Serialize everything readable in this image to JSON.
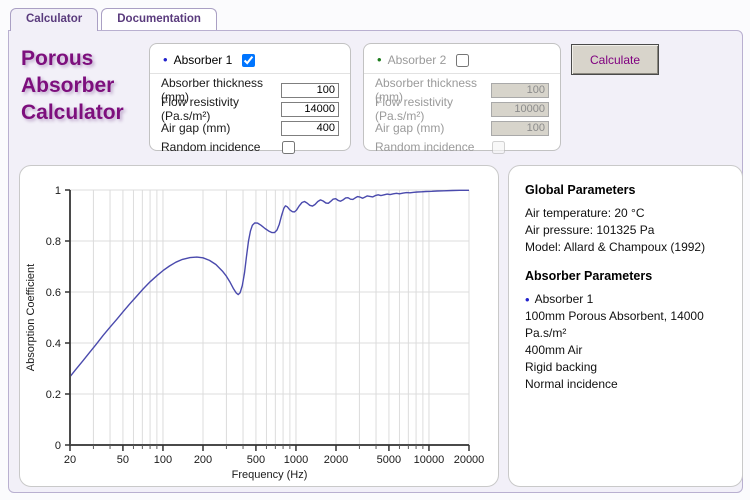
{
  "tabs": [
    {
      "label": "Calculator",
      "active": true
    },
    {
      "label": "Documentation",
      "active": false
    }
  ],
  "title": {
    "lines": [
      "Porous",
      "Absorber",
      "Calculator"
    ],
    "color": "#7d0f7d"
  },
  "calculate_button": {
    "label": "Calculate",
    "text_color": "#800080"
  },
  "colors": {
    "accent_purple": "#7d0f7d",
    "tab_text": "#5a3b7d",
    "container_bg": "#f2f0f8",
    "absorber1_bullet": "#2222cc",
    "absorber2_bullet": "#1e7d1e",
    "curve": "#4a4aad",
    "disabled_input_bg": "#d7d4cb"
  },
  "panels": {
    "absorber1": {
      "name": "Absorber 1",
      "enabled_checkbox_checked": true,
      "fields": [
        {
          "label": "Absorber thickness (mm)",
          "value": "100"
        },
        {
          "label": "Flow resistivity (Pa.s/m²)",
          "value": "14000"
        },
        {
          "label": "Air gap (mm)",
          "value": "400"
        }
      ],
      "random_incidence_label": "Random incidence",
      "random_incidence_checked": false
    },
    "absorber2": {
      "name": "Absorber 2",
      "enabled_checkbox_checked": false,
      "fields": [
        {
          "label": "Absorber thickness (mm)",
          "value": "100"
        },
        {
          "label": "Flow resistivity (Pa.s/m²)",
          "value": "10000"
        },
        {
          "label": "Air gap (mm)",
          "value": "100"
        }
      ],
      "random_incidence_label": "Random incidence",
      "random_incidence_checked": false
    }
  },
  "info_panel": {
    "global_heading": "Global Parameters",
    "global_lines": [
      "Air temperature: 20 °C",
      "Air pressure: 101325 Pa",
      "Model: Allard & Champoux (1992)"
    ],
    "absorber_heading": "Absorber Parameters",
    "absorber_name": "Absorber 1",
    "absorber_lines": [
      "100mm Porous Absorbent, 14000 Pa.s/m²",
      "400mm Air",
      "Rigid backing",
      "Normal incidence"
    ]
  },
  "chart_data": {
    "type": "line",
    "title": "",
    "xlabel": "Frequency (Hz)",
    "ylabel": "Absorption Coefficient",
    "x_scale": "log",
    "xlim": [
      20,
      20000
    ],
    "ylim": [
      0,
      1
    ],
    "grid": true,
    "legend": "none",
    "line_color": "#4a4aad",
    "x_major_ticks": [
      20,
      50,
      100,
      200,
      500,
      1000,
      2000,
      5000,
      10000,
      20000
    ],
    "x_minor_gridlines": [
      20,
      30,
      40,
      50,
      60,
      70,
      80,
      90,
      100,
      200,
      300,
      400,
      500,
      600,
      700,
      800,
      900,
      1000,
      2000,
      3000,
      4000,
      5000,
      6000,
      7000,
      8000,
      9000,
      10000,
      20000
    ],
    "y_ticks": [
      0,
      0.2,
      0.4,
      0.6,
      0.8,
      1
    ],
    "series": [
      {
        "name": "Absorber 1",
        "points": [
          [
            20,
            0.268
          ],
          [
            22,
            0.295
          ],
          [
            25,
            0.33
          ],
          [
            28,
            0.362
          ],
          [
            31.5,
            0.395
          ],
          [
            35.5,
            0.43
          ],
          [
            40,
            0.462
          ],
          [
            45,
            0.493
          ],
          [
            50,
            0.522
          ],
          [
            56,
            0.552
          ],
          [
            63,
            0.582
          ],
          [
            71,
            0.612
          ],
          [
            80,
            0.64
          ],
          [
            90,
            0.664
          ],
          [
            100,
            0.684
          ],
          [
            112,
            0.702
          ],
          [
            125,
            0.717
          ],
          [
            140,
            0.728
          ],
          [
            160,
            0.735
          ],
          [
            180,
            0.737
          ],
          [
            200,
            0.734
          ],
          [
            224,
            0.724
          ],
          [
            250,
            0.708
          ],
          [
            280,
            0.682
          ],
          [
            300,
            0.662
          ],
          [
            320,
            0.638
          ],
          [
            340,
            0.612
          ],
          [
            355,
            0.597
          ],
          [
            368,
            0.59
          ],
          [
            380,
            0.597
          ],
          [
            395,
            0.625
          ],
          [
            410,
            0.675
          ],
          [
            425,
            0.74
          ],
          [
            440,
            0.8
          ],
          [
            455,
            0.84
          ],
          [
            470,
            0.862
          ],
          [
            490,
            0.871
          ],
          [
            515,
            0.87
          ],
          [
            545,
            0.862
          ],
          [
            585,
            0.849
          ],
          [
            625,
            0.839
          ],
          [
            660,
            0.833
          ],
          [
            690,
            0.833
          ],
          [
            720,
            0.843
          ],
          [
            750,
            0.866
          ],
          [
            780,
            0.9
          ],
          [
            810,
            0.928
          ],
          [
            835,
            0.938
          ],
          [
            860,
            0.934
          ],
          [
            900,
            0.922
          ],
          [
            940,
            0.915
          ],
          [
            975,
            0.914
          ],
          [
            1010,
            0.921
          ],
          [
            1060,
            0.938
          ],
          [
            1110,
            0.951
          ],
          [
            1160,
            0.955
          ],
          [
            1210,
            0.949
          ],
          [
            1270,
            0.94
          ],
          [
            1330,
            0.937
          ],
          [
            1390,
            0.943
          ],
          [
            1460,
            0.955
          ],
          [
            1530,
            0.961
          ],
          [
            1600,
            0.957
          ],
          [
            1680,
            0.949
          ],
          [
            1750,
            0.948
          ],
          [
            1830,
            0.956
          ],
          [
            1900,
            0.964
          ],
          [
            1990,
            0.966
          ],
          [
            2080,
            0.959
          ],
          [
            2160,
            0.956
          ],
          [
            2270,
            0.962
          ],
          [
            2360,
            0.969
          ],
          [
            2460,
            0.97
          ],
          [
            2570,
            0.964
          ],
          [
            2680,
            0.963
          ],
          [
            2790,
            0.969
          ],
          [
            2900,
            0.974
          ],
          [
            3030,
            0.972
          ],
          [
            3170,
            0.968
          ],
          [
            3300,
            0.972
          ],
          [
            3440,
            0.977
          ],
          [
            3600,
            0.975
          ],
          [
            3780,
            0.973
          ],
          [
            3950,
            0.978
          ],
          [
            4150,
            0.981
          ],
          [
            4350,
            0.978
          ],
          [
            4600,
            0.981
          ],
          [
            4850,
            0.984
          ],
          [
            5100,
            0.982
          ],
          [
            5400,
            0.985
          ],
          [
            5700,
            0.987
          ],
          [
            6000,
            0.985
          ],
          [
            6400,
            0.988
          ],
          [
            6800,
            0.99
          ],
          [
            7200,
            0.989
          ],
          [
            7700,
            0.991
          ],
          [
            8200,
            0.992
          ],
          [
            8800,
            0.993
          ],
          [
            9500,
            0.994
          ],
          [
            10500,
            0.995
          ],
          [
            11500,
            0.996
          ],
          [
            13000,
            0.997
          ],
          [
            15000,
            0.998
          ],
          [
            17000,
            0.999
          ],
          [
            20000,
            0.999
          ]
        ]
      }
    ]
  }
}
